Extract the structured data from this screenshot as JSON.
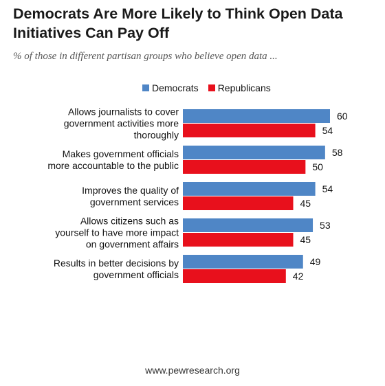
{
  "title": "Democrats Are More Likely to Think Open Data Initiatives Can Pay Off",
  "subtitle": "% of those in different partisan groups who believe open data ...",
  "footer": "www.pewresearch.org",
  "colors": {
    "democrats": "#4f86c6",
    "republicans": "#e8101c"
  },
  "chart_data": {
    "type": "bar",
    "orientation": "horizontal",
    "title": "Democrats Are More Likely to Think Open Data Initiatives Can Pay Off",
    "subtitle": "% of those in different partisan groups who believe open data ...",
    "legend": "top",
    "grid": false,
    "xlim": [
      0,
      60
    ],
    "categories": [
      [
        "Allows journalists to cover",
        "government activities more",
        "thoroughly"
      ],
      [
        "Makes government officials",
        "more accountable to the public"
      ],
      [
        "Improves the quality of",
        "government services"
      ],
      [
        "Allows citizens such as",
        "yourself to have more impact",
        "on government affairs"
      ],
      [
        "Results in better decisions by",
        "government officials"
      ]
    ],
    "series": [
      {
        "name": "Democrats",
        "color": "#4f86c6",
        "values": [
          60,
          58,
          54,
          53,
          49
        ]
      },
      {
        "name": "Republicans",
        "color": "#e8101c",
        "values": [
          54,
          50,
          45,
          45,
          42
        ]
      }
    ]
  }
}
